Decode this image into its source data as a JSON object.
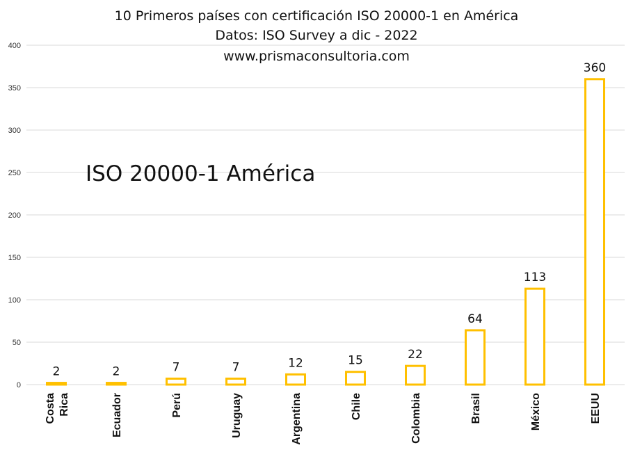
{
  "chart_data": {
    "type": "bar",
    "title_lines": [
      "10 Primeros países con certificación ISO 20000-1  en América",
      "Datos:  ISO Survey a dic - 2022",
      "www.prismaconsultoria.com"
    ],
    "annotation": "ISO 20000-1 América",
    "categories": [
      "Costa Rica",
      "Ecuador",
      "Perú",
      "Uruguay",
      "Argentina",
      "Chile",
      "Colombia",
      "Brasil",
      "México",
      "EEUU"
    ],
    "category_lines": [
      [
        "Costa",
        "Rica"
      ],
      [
        "Ecuador"
      ],
      [
        "Perú"
      ],
      [
        "Uruguay"
      ],
      [
        "Argentina"
      ],
      [
        "Chile"
      ],
      [
        "Colombia"
      ],
      [
        "Brasil"
      ],
      [
        "México"
      ],
      [
        "EEUU"
      ]
    ],
    "values": [
      2,
      2,
      7,
      7,
      12,
      15,
      22,
      64,
      113,
      360
    ],
    "ylim": [
      0,
      400
    ],
    "yticks": [
      0,
      50,
      100,
      150,
      200,
      250,
      300,
      350,
      400
    ],
    "grid": true,
    "legend": "none",
    "colors": {
      "bar_outline": "#FFC000",
      "bar_fill": "#FFFFFF",
      "grid": "#D9D9D9",
      "text": "#111111"
    }
  }
}
